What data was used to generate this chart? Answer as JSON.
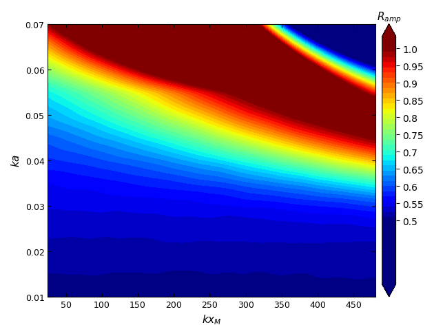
{
  "xlabel": "$kx_M$",
  "ylabel": "$ka$",
  "colorbar_label": "$R_{amp}$",
  "xlim": [
    25,
    480
  ],
  "ylim": [
    0.01,
    0.07
  ],
  "xticks": [
    50,
    100,
    150,
    200,
    250,
    300,
    350,
    400,
    450
  ],
  "yticks": [
    0.01,
    0.02,
    0.03,
    0.04,
    0.05,
    0.06,
    0.07
  ],
  "vmin": 0.5,
  "vmax": 1.0,
  "colorbar_ticks": [
    0.5,
    0.55,
    0.6,
    0.65,
    0.7,
    0.75,
    0.8,
    0.85,
    0.9,
    0.95,
    1.0
  ],
  "figsize": [
    6.3,
    4.89
  ],
  "dpi": 100,
  "noise_seed": 17
}
